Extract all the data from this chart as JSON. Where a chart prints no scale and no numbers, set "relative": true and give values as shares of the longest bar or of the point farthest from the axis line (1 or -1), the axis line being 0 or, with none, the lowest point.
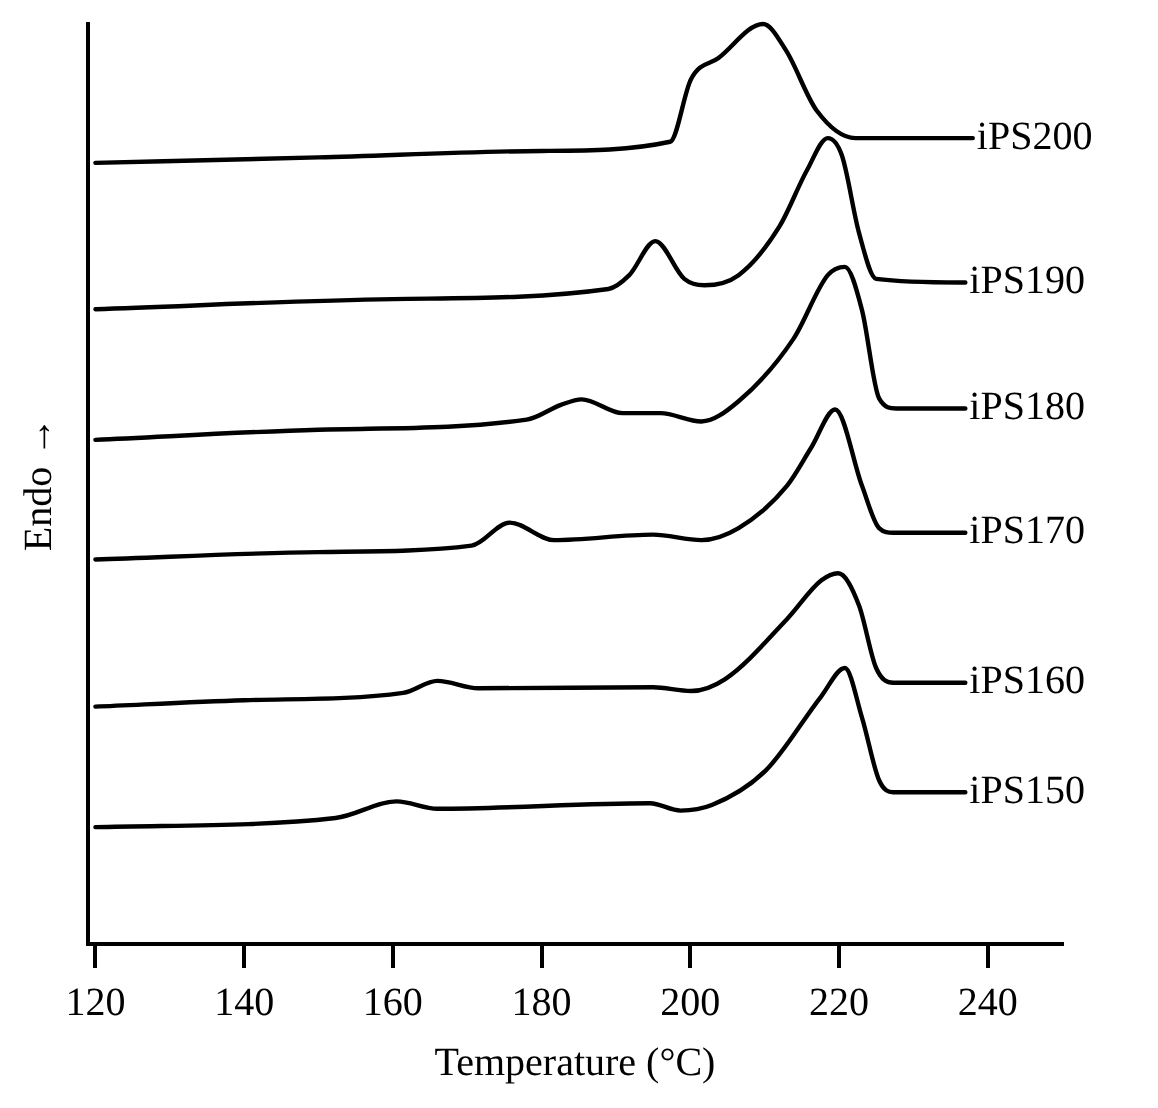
{
  "chart_data": {
    "type": "line",
    "relative": true,
    "xlabel": "Temperature (°C)",
    "ylabel": "Endo →",
    "xlim": [
      119,
      250
    ],
    "xticks": [
      120,
      140,
      160,
      180,
      200,
      220,
      240
    ],
    "grid": false,
    "legend": false,
    "marker": "none",
    "line_style": "solid",
    "tick_labels": "x",
    "series": [
      {
        "name": "iPS200",
        "color": "#000000",
        "x": [
          120,
          150,
          180,
          197.3,
          200.1,
          203.8,
          209.8,
          212.9,
          217,
          222.2,
          238
        ],
        "values": [
          0.849,
          0.855,
          0.862,
          0.872,
          0.94,
          0.963,
          1.0,
          0.971,
          0.906,
          0.876,
          0.876
        ]
      },
      {
        "name": "iPS190",
        "color": "#000000",
        "x": [
          120,
          160,
          189,
          191.8,
          195.3,
          199.2,
          201.9,
          206.5,
          212,
          215.7,
          218.5,
          220.4,
          222.7,
          225,
          237
        ],
        "values": [
          0.69,
          0.701,
          0.712,
          0.727,
          0.764,
          0.723,
          0.716,
          0.727,
          0.78,
          0.841,
          0.876,
          0.857,
          0.773,
          0.723,
          0.719
        ]
      },
      {
        "name": "iPS180",
        "color": "#000000",
        "x": [
          120,
          150,
          178,
          182.6,
          185.4,
          190.9,
          196,
          201.5,
          206.5,
          213.9,
          218.5,
          220.8,
          223.1,
          225.4,
          227.7,
          237
        ],
        "values": [
          0.548,
          0.559,
          0.57,
          0.586,
          0.592,
          0.577,
          0.577,
          0.568,
          0.59,
          0.658,
          0.727,
          0.736,
          0.689,
          0.593,
          0.582,
          0.582
        ]
      },
      {
        "name": "iPS170",
        "color": "#000000",
        "x": [
          120,
          150,
          170.6,
          175.7,
          181.7,
          195,
          201.5,
          206.5,
          213,
          216.3,
          219.5,
          223.1,
          225.4,
          227.3,
          237
        ],
        "values": [
          0.418,
          0.426,
          0.433,
          0.458,
          0.439,
          0.445,
          0.439,
          0.452,
          0.498,
          0.54,
          0.581,
          0.498,
          0.452,
          0.447,
          0.447
        ]
      },
      {
        "name": "iPS160",
        "color": "#000000",
        "x": [
          120,
          140,
          161.4,
          166,
          171.5,
          195,
          200.1,
          204.7,
          213,
          217.6,
          219.9,
          222.7,
          225,
          227.3,
          237
        ],
        "values": [
          0.258,
          0.265,
          0.273,
          0.286,
          0.278,
          0.279,
          0.275,
          0.288,
          0.353,
          0.395,
          0.403,
          0.368,
          0.3,
          0.284,
          0.284
        ]
      },
      {
        "name": "iPS150",
        "color": "#000000",
        "x": [
          120,
          152.3,
          160.5,
          166,
          194.6,
          198.7,
          202.9,
          210.2,
          217.6,
          220.8,
          223.1,
          225.4,
          227.3,
          237
        ],
        "values": [
          0.127,
          0.137,
          0.155,
          0.147,
          0.153,
          0.145,
          0.151,
          0.189,
          0.269,
          0.3,
          0.246,
          0.178,
          0.165,
          0.165
        ]
      }
    ]
  }
}
